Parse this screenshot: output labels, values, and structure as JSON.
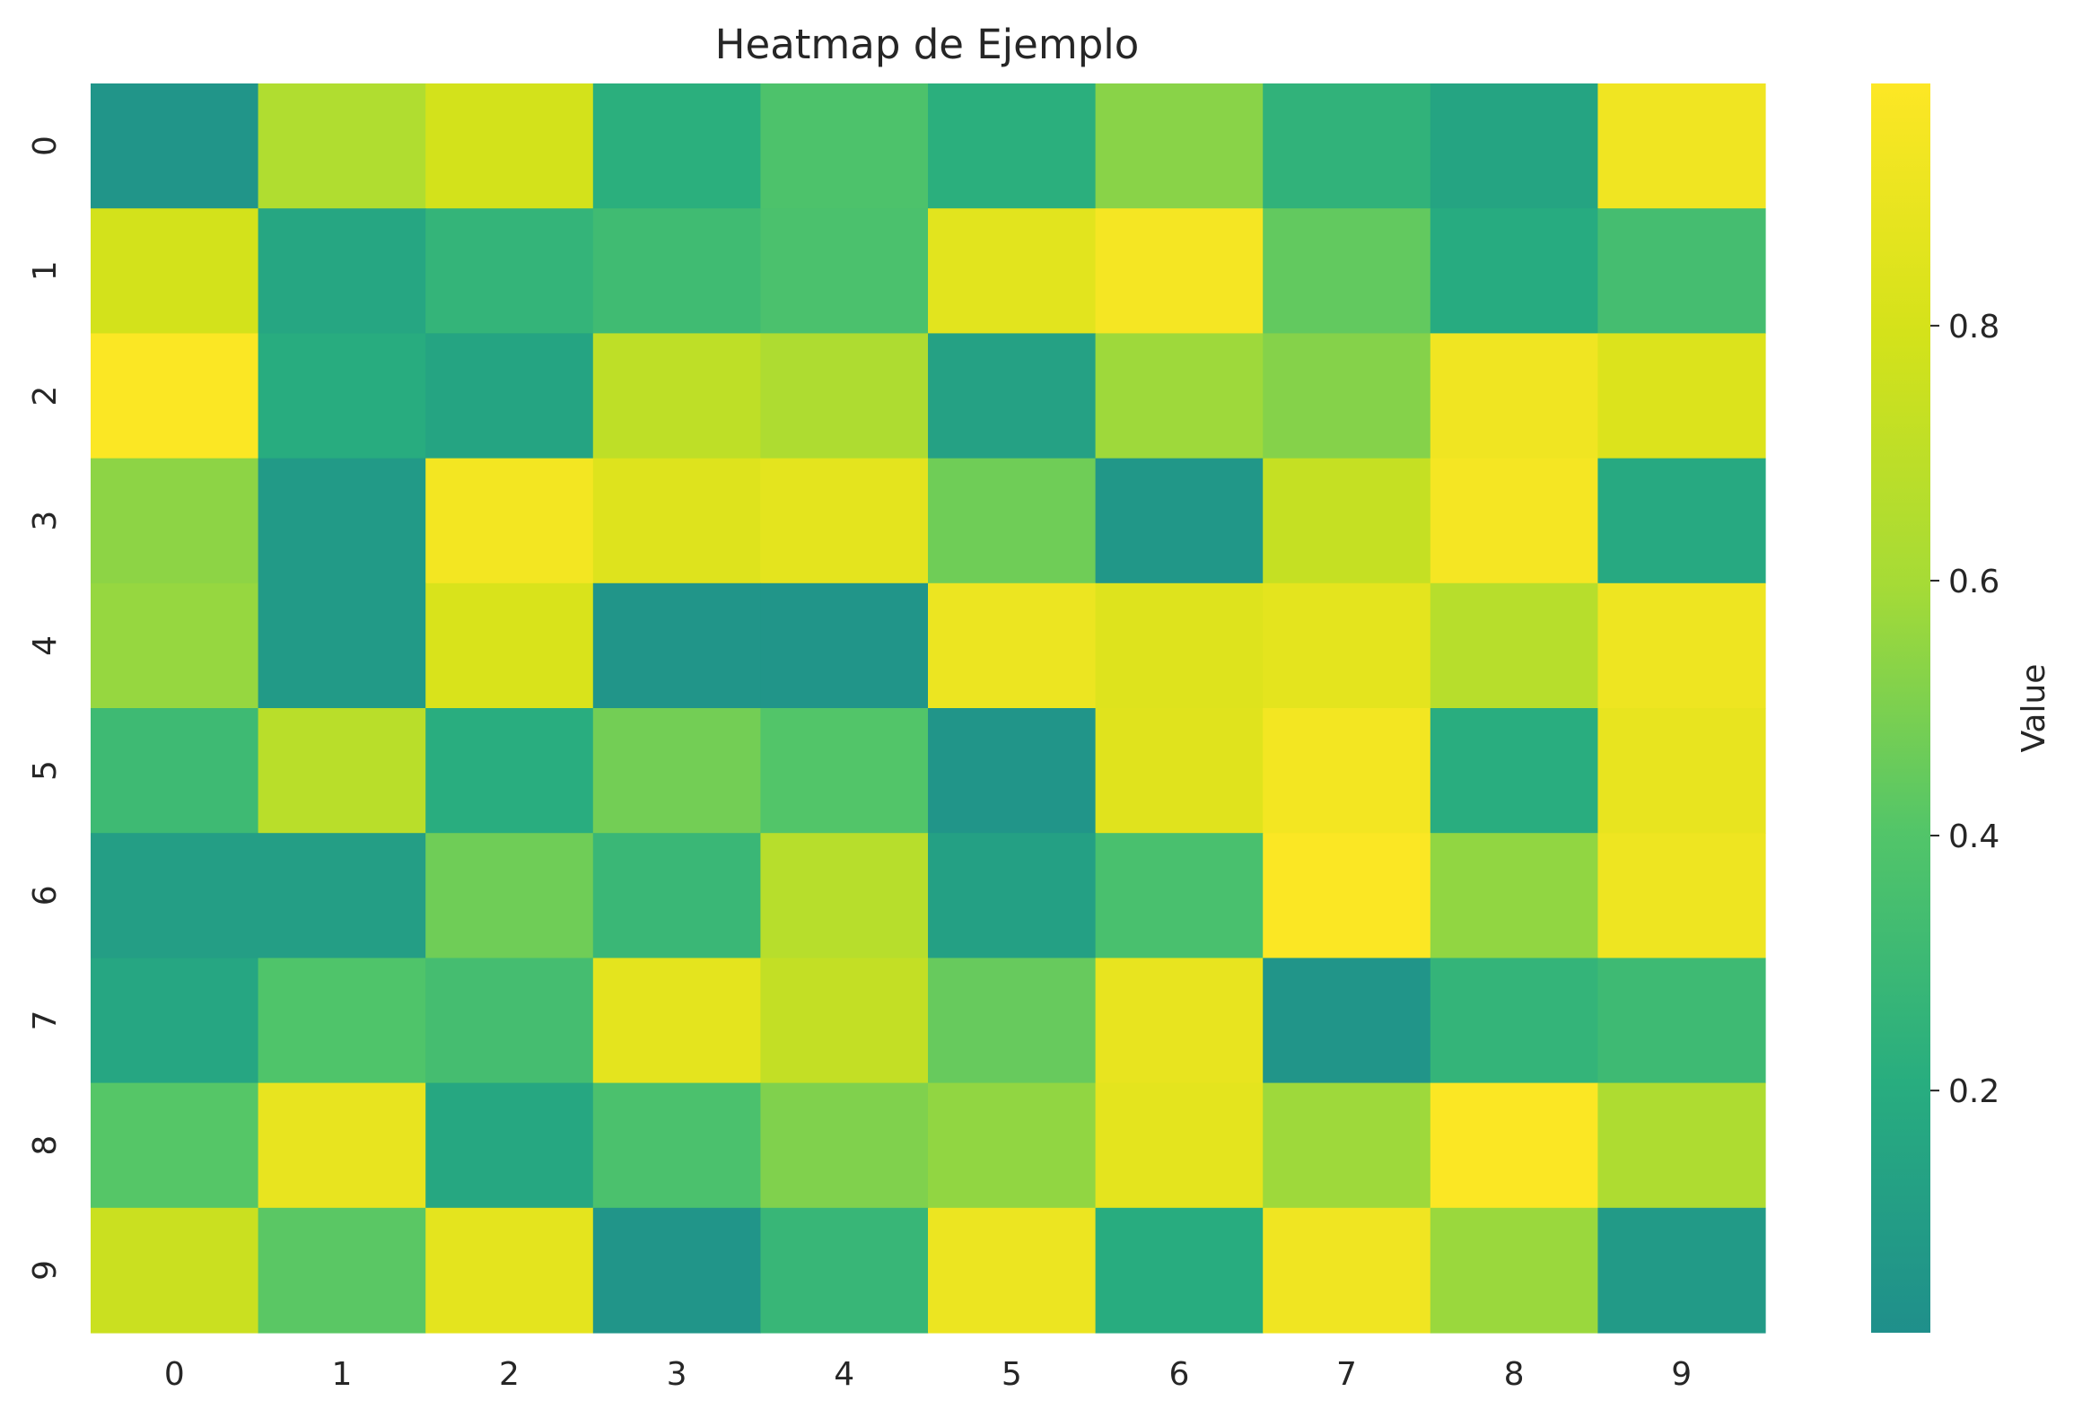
{
  "chart_data": {
    "type": "heatmap",
    "title": "Heatmap de Ejemplo",
    "xlabel": "",
    "ylabel": "",
    "x_categories": [
      "0",
      "1",
      "2",
      "3",
      "4",
      "5",
      "6",
      "7",
      "8",
      "9"
    ],
    "y_categories": [
      "0",
      "1",
      "2",
      "3",
      "4",
      "5",
      "6",
      "7",
      "8",
      "9"
    ],
    "values": [
      [
        0.05,
        0.64,
        0.79,
        0.22,
        0.38,
        0.22,
        0.53,
        0.25,
        0.15,
        0.93
      ],
      [
        0.79,
        0.16,
        0.26,
        0.32,
        0.37,
        0.86,
        0.95,
        0.44,
        0.19,
        0.34
      ],
      [
        0.98,
        0.2,
        0.15,
        0.7,
        0.63,
        0.13,
        0.58,
        0.52,
        0.93,
        0.83
      ],
      [
        0.54,
        0.08,
        0.94,
        0.84,
        0.87,
        0.47,
        0.06,
        0.73,
        0.95,
        0.18
      ],
      [
        0.56,
        0.08,
        0.82,
        0.05,
        0.05,
        0.91,
        0.84,
        0.87,
        0.67,
        0.92
      ],
      [
        0.31,
        0.68,
        0.21,
        0.48,
        0.4,
        0.05,
        0.85,
        0.94,
        0.21,
        0.89
      ],
      [
        0.11,
        0.11,
        0.47,
        0.29,
        0.67,
        0.12,
        0.36,
        0.98,
        0.55,
        0.92
      ],
      [
        0.16,
        0.39,
        0.34,
        0.87,
        0.72,
        0.45,
        0.89,
        0.05,
        0.26,
        0.31
      ],
      [
        0.41,
        0.89,
        0.17,
        0.37,
        0.51,
        0.55,
        0.87,
        0.58,
        0.98,
        0.63
      ],
      [
        0.75,
        0.42,
        0.87,
        0.05,
        0.28,
        0.91,
        0.2,
        0.93,
        0.57,
        0.08
      ]
    ],
    "colorbar": {
      "label": "Value",
      "ticks": [
        0.2,
        0.4,
        0.6,
        0.8
      ],
      "tick_labels": [
        "0.2",
        "0.4",
        "0.6",
        "0.8"
      ],
      "range": [
        0.01,
        0.99
      ]
    },
    "colormap_stops": [
      "#1f8f8b",
      "#28ad7f",
      "#52c569",
      "#a6db36",
      "#d4e21a",
      "#fde725"
    ]
  }
}
